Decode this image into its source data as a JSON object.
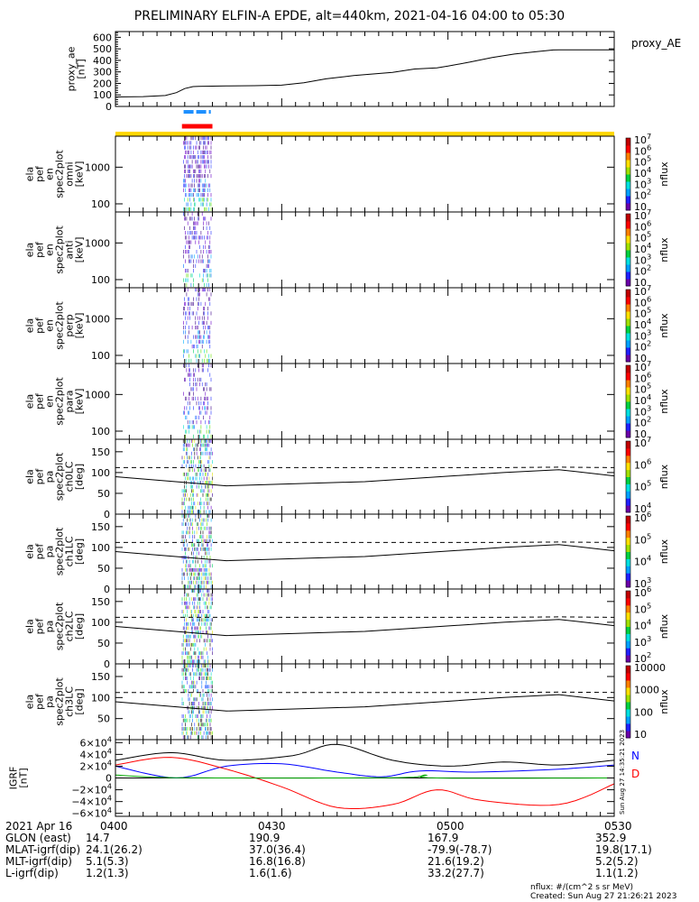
{
  "title": "PRELIMINARY ELFIN-A EPDE, alt=440km, 2021-04-16 04:00 to 05:30",
  "ae_panel": {
    "ylabel": "proxy_ae\n[nT]",
    "legend": "proxy_AE",
    "yticks": [
      "600",
      "500",
      "400",
      "300",
      "200",
      "100",
      "0"
    ],
    "ylim": [
      0,
      650
    ],
    "trace_minutes": [
      0,
      5,
      9,
      11,
      12.5,
      14,
      15,
      20,
      25,
      28,
      30,
      34,
      38,
      43,
      48,
      50,
      54,
      58,
      60,
      64,
      68,
      72,
      76,
      79,
      80,
      90
    ],
    "trace_values": [
      82,
      85,
      95,
      120,
      155,
      172,
      175,
      178,
      180,
      183,
      185,
      205,
      240,
      268,
      288,
      296,
      325,
      335,
      350,
      385,
      425,
      455,
      475,
      490,
      492,
      492
    ]
  },
  "spec_panels": [
    {
      "name": "omni",
      "ylabel": "ela\npef\nen\nspec2plot\nomni\n[keV]",
      "yticks": [
        "1000",
        "100"
      ],
      "cb_ticks": [
        "10^7",
        "10^6",
        "10^5",
        "10^4",
        "10^3",
        "10^2",
        "10"
      ],
      "cb_label": "nflux"
    },
    {
      "name": "anti",
      "ylabel": "ela\npef\nen\nspec2plot\nanti\n[keV]",
      "yticks": [
        "1000",
        "100"
      ],
      "cb_ticks": [
        "10^7",
        "10^6",
        "10^5",
        "10^4",
        "10^3",
        "10^2",
        "10"
      ],
      "cb_label": "nflux"
    },
    {
      "name": "perp",
      "ylabel": "ela\npef\nen\nspec2plot\nperp\n[keV]",
      "yticks": [
        "1000",
        "100"
      ],
      "cb_ticks": [
        "10^7",
        "10^6",
        "10^5",
        "10^4",
        "10^3",
        "10^2",
        "10"
      ],
      "cb_label": "nflux"
    },
    {
      "name": "para",
      "ylabel": "ela\npef\nen\nspec2plot\npara\n[keV]",
      "yticks": [
        "1000",
        "100"
      ],
      "cb_ticks": [
        "10^7",
        "10^6",
        "10^5",
        "10^4",
        "10^3",
        "10^2",
        "10"
      ],
      "cb_label": "nflux"
    }
  ],
  "pa_panels": [
    {
      "name": "ch0LC",
      "ylabel": "ela\npef\npa\nspec2plot\nch0LC\n[deg]",
      "yticks": [
        "150",
        "100",
        "50",
        "0"
      ],
      "cb_ticks": [
        "10^7",
        "10^6",
        "10^5",
        "10^4"
      ],
      "cb_label": "nflux"
    },
    {
      "name": "ch1LC",
      "ylabel": "ela\npef\npa\nspec2plot\nch1LC\n[deg]",
      "yticks": [
        "150",
        "100",
        "50",
        "0"
      ],
      "cb_ticks": [
        "10^6",
        "10^5",
        "10^4",
        "10^3"
      ],
      "cb_label": "nflux"
    },
    {
      "name": "ch2LC",
      "ylabel": "ela\npef\npa\nspec2plot\nch2LC\n[deg]",
      "yticks": [
        "150",
        "100",
        "50",
        "0"
      ],
      "cb_ticks": [
        "10^6",
        "10^5",
        "10^4",
        "10^3",
        "10^2"
      ],
      "cb_label": "nflux"
    },
    {
      "name": "ch3LC",
      "ylabel": "ela\npef\npa\nspec2plot\nch3LC\n[deg]",
      "yticks": [
        "150",
        "100",
        "50"
      ],
      "cb_ticks": [
        "10000",
        "1000",
        "100",
        "10"
      ],
      "cb_label": "nflux"
    }
  ],
  "igrf_panel": {
    "ylabel": "IGRF\n[nT]",
    "yticks": [
      "6×10^4",
      "4×10^4",
      "2×10^4",
      "0",
      "−2×10^4",
      "−4×10^4",
      "−6×10^4"
    ],
    "legend": [
      {
        "label": "N",
        "color": "#0000ff"
      },
      {
        "label": "D",
        "color": "#ff0000"
      }
    ],
    "side_text": "Sun Aug 27 14:35:21 2023"
  },
  "chart_data": {
    "type": "line",
    "xlim_minutes": [
      0,
      90
    ],
    "x_tick_labels": [
      "0400",
      "0430",
      "0500",
      "0530"
    ],
    "series": [
      {
        "panel": "proxy_ae",
        "name": "proxy_AE",
        "unit": "nT"
      },
      {
        "panel": "igrf",
        "name": "N",
        "color": "#0000ff"
      },
      {
        "panel": "igrf",
        "name": "D",
        "color": "#ff0000"
      }
    ]
  },
  "footer": {
    "date": "2021 Apr 16",
    "rows": [
      {
        "label": "GLON (east)",
        "values": [
          "14.7",
          "190.9",
          "167.9",
          "352.9"
        ]
      },
      {
        "label": "MLAT-igrf(dip)",
        "values": [
          "24.1(26.2)",
          "37.0(36.4)",
          "-79.9(-78.7)",
          "19.8(17.1)"
        ]
      },
      {
        "label": "MLT-igrf(dip)",
        "values": [
          "5.1(5.3)",
          "16.8(16.8)",
          "21.6(19.2)",
          "5.2(5.2)"
        ]
      },
      {
        "label": "L-igrf(dip)",
        "values": [
          "1.2(1.3)",
          "1.6(1.6)",
          "33.2(27.7)",
          "1.1(1.2)"
        ]
      }
    ],
    "nflux_unit": "nflux: #/(cm^2 s sr MeV)",
    "created": "Created: Sun Aug 27 21:26:21 2023"
  }
}
